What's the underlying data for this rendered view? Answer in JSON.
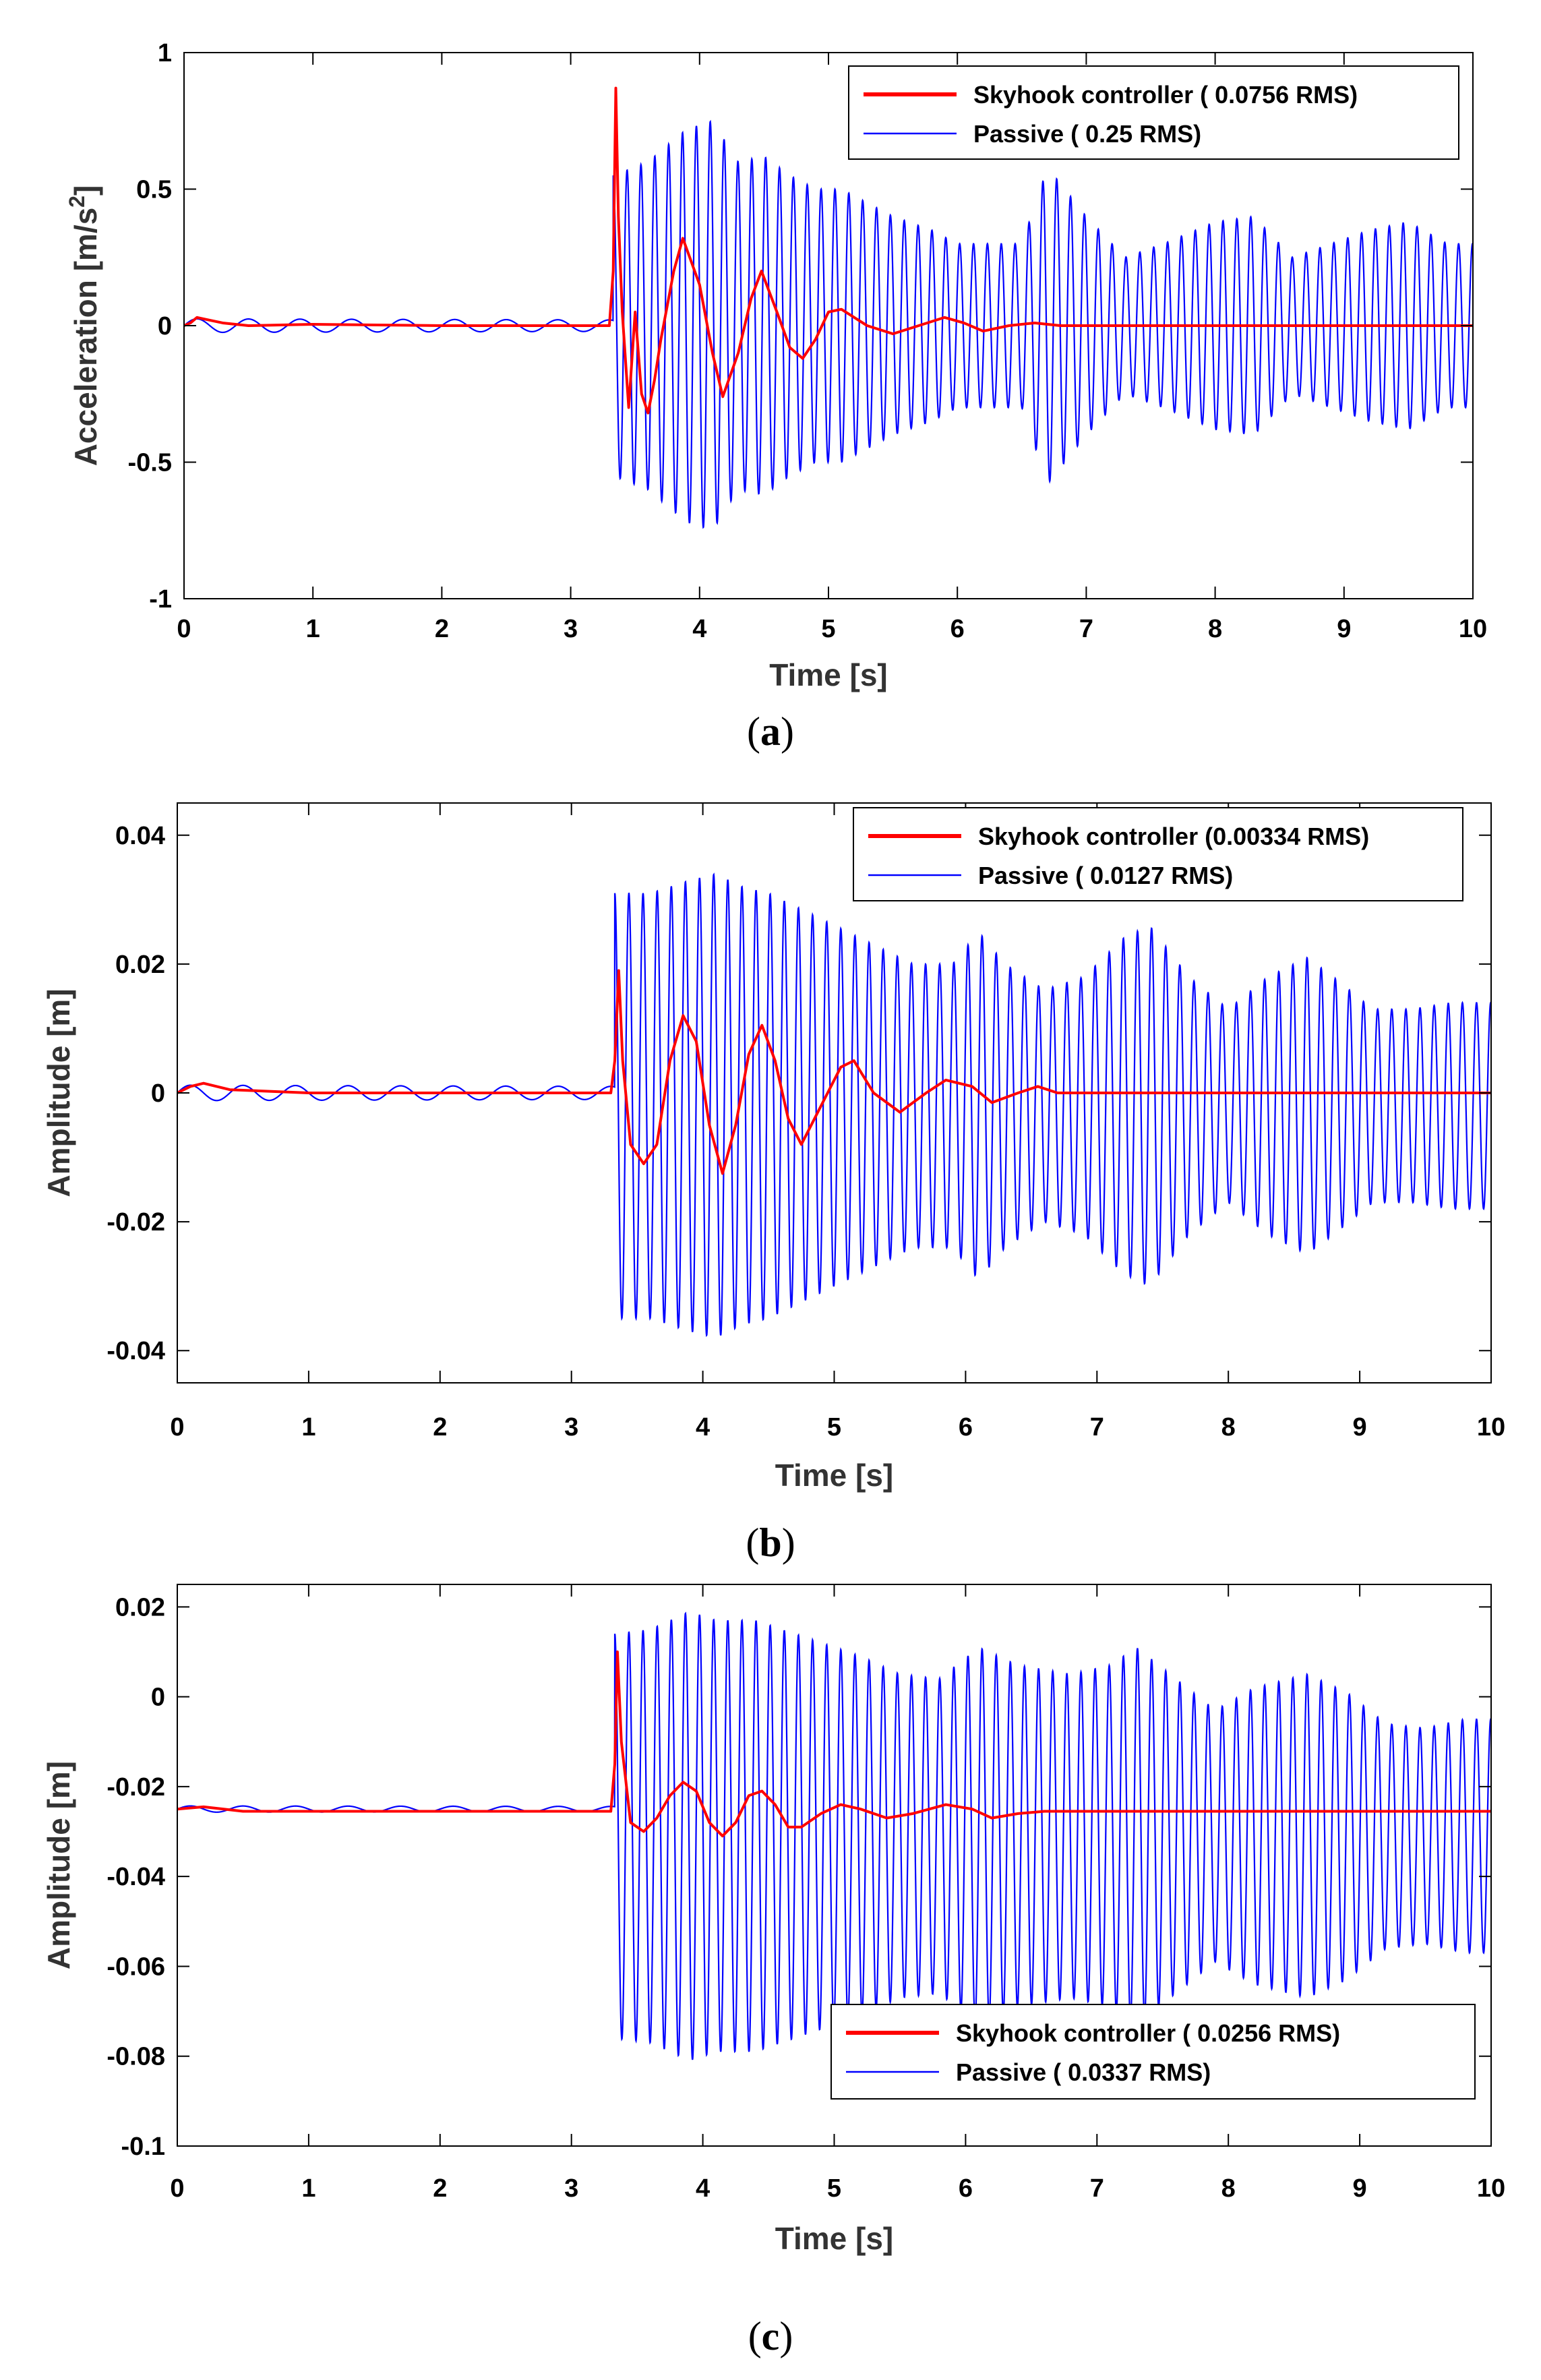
{
  "chart_data": [
    {
      "type": "line",
      "panel_caption": "(a)",
      "caption_letter": "a",
      "xlabel": "Time [s]",
      "ylabel": "Acceleration  [m/s",
      "ylabel_sup": "2",
      "ylabel_close": "]",
      "xlim": [
        0,
        10
      ],
      "ylim": [
        -1,
        1
      ],
      "xticks": [
        0,
        1,
        2,
        3,
        4,
        5,
        6,
        7,
        8,
        9,
        10
      ],
      "yticks": [
        -1,
        -0.5,
        0,
        0.5,
        1
      ],
      "ytick_labels": [
        "-1",
        "-0.5",
        "0",
        "0.5",
        "1"
      ],
      "legend_position": "top-right",
      "grid": false,
      "series": [
        {
          "name": "Skyhook controller ( 0.0756 RMS)",
          "color": "#ff0000",
          "points": [
            [
              0,
              0
            ],
            [
              0.05,
              0.01
            ],
            [
              0.1,
              0.03
            ],
            [
              0.2,
              0.02
            ],
            [
              0.3,
              0.01
            ],
            [
              0.5,
              0
            ],
            [
              1,
              0.005
            ],
            [
              2,
              0
            ],
            [
              3,
              0
            ],
            [
              3.3,
              0
            ],
            [
              3.33,
              0.2
            ],
            [
              3.35,
              0.87
            ],
            [
              3.37,
              0.4
            ],
            [
              3.4,
              0.05
            ],
            [
              3.45,
              -0.3
            ],
            [
              3.5,
              0.05
            ],
            [
              3.55,
              -0.25
            ],
            [
              3.6,
              -0.32
            ],
            [
              3.65,
              -0.2
            ],
            [
              3.7,
              -0.05
            ],
            [
              3.8,
              0.2
            ],
            [
              3.87,
              0.32
            ],
            [
              4.0,
              0.15
            ],
            [
              4.1,
              -0.1
            ],
            [
              4.18,
              -0.26
            ],
            [
              4.3,
              -0.1
            ],
            [
              4.4,
              0.1
            ],
            [
              4.48,
              0.2
            ],
            [
              4.6,
              0.05
            ],
            [
              4.7,
              -0.08
            ],
            [
              4.8,
              -0.12
            ],
            [
              4.9,
              -0.05
            ],
            [
              5.0,
              0.05
            ],
            [
              5.1,
              0.06
            ],
            [
              5.3,
              0
            ],
            [
              5.5,
              -0.03
            ],
            [
              5.7,
              0.0
            ],
            [
              5.9,
              0.03
            ],
            [
              6.05,
              0.01
            ],
            [
              6.2,
              -0.02
            ],
            [
              6.4,
              0
            ],
            [
              6.6,
              0.01
            ],
            [
              6.8,
              0
            ],
            [
              7,
              0
            ],
            [
              8,
              0
            ],
            [
              9,
              0
            ],
            [
              10,
              0
            ]
          ]
        },
        {
          "name": "Passive (   0.25 RMS)",
          "color": "#0000ff",
          "osc": {
            "f_pre": 2.5,
            "a_pre": 0.025,
            "offset_pre": 0.0,
            "t0": 3.33,
            "offset_post": 0.0,
            "f_post": 9.3,
            "envelope": [
              [
                3.33,
                0.55
              ],
              [
                3.6,
                0.6
              ],
              [
                3.9,
                0.72
              ],
              [
                4.1,
                0.75
              ],
              [
                4.3,
                0.6
              ],
              [
                4.5,
                0.62
              ],
              [
                4.7,
                0.55
              ],
              [
                4.9,
                0.5
              ],
              [
                5.1,
                0.5
              ],
              [
                5.3,
                0.45
              ],
              [
                5.5,
                0.4
              ],
              [
                5.8,
                0.35
              ],
              [
                6.0,
                0.3
              ],
              [
                6.2,
                0.3
              ],
              [
                6.5,
                0.3
              ],
              [
                6.7,
                0.58
              ],
              [
                7.0,
                0.4
              ],
              [
                7.3,
                0.25
              ],
              [
                7.6,
                0.3
              ],
              [
                8.0,
                0.38
              ],
              [
                8.3,
                0.4
              ],
              [
                8.6,
                0.25
              ],
              [
                8.9,
                0.3
              ],
              [
                9.2,
                0.35
              ],
              [
                9.5,
                0.38
              ],
              [
                9.8,
                0.3
              ],
              [
                10.0,
                0.3
              ]
            ]
          }
        }
      ]
    },
    {
      "type": "line",
      "panel_caption": "(b)",
      "caption_letter": "b",
      "xlabel": "Time [s]",
      "ylabel": "Amplitude [m]",
      "xlim": [
        0,
        10
      ],
      "ylim": [
        -0.045,
        0.045
      ],
      "xticks": [
        0,
        1,
        2,
        3,
        4,
        5,
        6,
        7,
        8,
        9,
        10
      ],
      "yticks": [
        -0.04,
        -0.02,
        0,
        0.02,
        0.04
      ],
      "ytick_labels": [
        "-0.04",
        "-0.02",
        "0",
        "0.02",
        "0.04"
      ],
      "legend_position": "top-right",
      "grid": false,
      "series": [
        {
          "name": "Skyhook controller (0.00334 RMS)",
          "color": "#ff0000",
          "points": [
            [
              0,
              0
            ],
            [
              0.1,
              0.001
            ],
            [
              0.2,
              0.0015
            ],
            [
              0.4,
              0.0005
            ],
            [
              1,
              0.0
            ],
            [
              2,
              0
            ],
            [
              3,
              0
            ],
            [
              3.3,
              0
            ],
            [
              3.33,
              0.005
            ],
            [
              3.36,
              0.019
            ],
            [
              3.39,
              0.005
            ],
            [
              3.45,
              -0.008
            ],
            [
              3.55,
              -0.011
            ],
            [
              3.65,
              -0.008
            ],
            [
              3.75,
              0.005
            ],
            [
              3.85,
              0.012
            ],
            [
              3.95,
              0.008
            ],
            [
              4.05,
              -0.005
            ],
            [
              4.15,
              -0.0125
            ],
            [
              4.25,
              -0.005
            ],
            [
              4.35,
              0.006
            ],
            [
              4.45,
              0.0105
            ],
            [
              4.55,
              0.005
            ],
            [
              4.65,
              -0.004
            ],
            [
              4.75,
              -0.008
            ],
            [
              4.9,
              -0.002
            ],
            [
              5.05,
              0.004
            ],
            [
              5.15,
              0.005
            ],
            [
              5.3,
              0
            ],
            [
              5.5,
              -0.003
            ],
            [
              5.7,
              0
            ],
            [
              5.85,
              0.002
            ],
            [
              6.05,
              0.001
            ],
            [
              6.2,
              -0.0015
            ],
            [
              6.4,
              0
            ],
            [
              6.55,
              0.001
            ],
            [
              6.7,
              0
            ],
            [
              7,
              0
            ],
            [
              8,
              0
            ],
            [
              9,
              0
            ],
            [
              10,
              0
            ]
          ]
        },
        {
          "name": "Passive  ( 0.0127 RMS)",
          "color": "#0000ff",
          "osc": {
            "f_pre": 2.5,
            "a_pre": 0.0012,
            "offset_pre": 0.0,
            "t0": 3.33,
            "offset_post": -0.002,
            "f_post": 9.3,
            "envelope": [
              [
                3.33,
                0.033
              ],
              [
                3.6,
                0.033
              ],
              [
                3.9,
                0.035
              ],
              [
                4.1,
                0.036
              ],
              [
                4.3,
                0.034
              ],
              [
                4.5,
                0.033
              ],
              [
                4.7,
                0.031
              ],
              [
                5.0,
                0.028
              ],
              [
                5.3,
                0.025
              ],
              [
                5.6,
                0.022
              ],
              [
                5.9,
                0.022
              ],
              [
                6.1,
                0.027
              ],
              [
                6.3,
                0.022
              ],
              [
                6.6,
                0.018
              ],
              [
                6.9,
                0.02
              ],
              [
                7.2,
                0.026
              ],
              [
                7.4,
                0.028
              ],
              [
                7.7,
                0.02
              ],
              [
                8.0,
                0.015
              ],
              [
                8.3,
                0.02
              ],
              [
                8.6,
                0.023
              ],
              [
                8.8,
                0.02
              ],
              [
                9.1,
                0.015
              ],
              [
                9.4,
                0.015
              ],
              [
                9.7,
                0.016
              ],
              [
                10.0,
                0.016
              ]
            ]
          }
        }
      ]
    },
    {
      "type": "line",
      "panel_caption": "(c)",
      "caption_letter": "c",
      "xlabel": "Time [s]",
      "ylabel": "Amplitude [m]",
      "xlim": [
        0,
        10
      ],
      "ylim": [
        -0.1,
        0.025
      ],
      "xticks": [
        0,
        1,
        2,
        3,
        4,
        5,
        6,
        7,
        8,
        9,
        10
      ],
      "yticks": [
        -0.1,
        -0.08,
        -0.06,
        -0.04,
        -0.02,
        0,
        0.02
      ],
      "ytick_labels": [
        "-0.1",
        "-0.08",
        "-0.06",
        "-0.04",
        "-0.02",
        "0",
        "0.02"
      ],
      "legend_position": "bottom-right",
      "grid": false,
      "series": [
        {
          "name": "Skyhook controller ( 0.0256 RMS)",
          "color": "#ff0000",
          "points": [
            [
              0,
              -0.025
            ],
            [
              0.2,
              -0.0245
            ],
            [
              0.5,
              -0.0255
            ],
            [
              1,
              -0.0255
            ],
            [
              2,
              -0.0255
            ],
            [
              3,
              -0.0255
            ],
            [
              3.3,
              -0.0255
            ],
            [
              3.33,
              -0.015
            ],
            [
              3.35,
              0.01
            ],
            [
              3.38,
              -0.01
            ],
            [
              3.45,
              -0.028
            ],
            [
              3.55,
              -0.03
            ],
            [
              3.65,
              -0.027
            ],
            [
              3.75,
              -0.022
            ],
            [
              3.85,
              -0.019
            ],
            [
              3.95,
              -0.021
            ],
            [
              4.05,
              -0.028
            ],
            [
              4.15,
              -0.031
            ],
            [
              4.25,
              -0.028
            ],
            [
              4.35,
              -0.022
            ],
            [
              4.45,
              -0.021
            ],
            [
              4.55,
              -0.024
            ],
            [
              4.65,
              -0.029
            ],
            [
              4.75,
              -0.029
            ],
            [
              4.9,
              -0.026
            ],
            [
              5.05,
              -0.024
            ],
            [
              5.2,
              -0.025
            ],
            [
              5.4,
              -0.027
            ],
            [
              5.6,
              -0.026
            ],
            [
              5.85,
              -0.024
            ],
            [
              6.05,
              -0.025
            ],
            [
              6.2,
              -0.027
            ],
            [
              6.4,
              -0.026
            ],
            [
              6.6,
              -0.0255
            ],
            [
              7,
              -0.0255
            ],
            [
              8,
              -0.0255
            ],
            [
              9,
              -0.0255
            ],
            [
              10,
              -0.0255
            ]
          ]
        },
        {
          "name": "Passive  ( 0.0337 RMS)",
          "color": "#0000ff",
          "osc": {
            "f_pre": 2.5,
            "a_pre": 0.0007,
            "offset_pre": -0.025,
            "t0": 3.33,
            "offset_post": -0.031,
            "f_post": 9.3,
            "envelope": [
              [
                3.33,
                0.045
              ],
              [
                3.6,
                0.046
              ],
              [
                3.9,
                0.05
              ],
              [
                4.1,
                0.048
              ],
              [
                4.4,
                0.048
              ],
              [
                4.6,
                0.046
              ],
              [
                4.9,
                0.043
              ],
              [
                5.2,
                0.04
              ],
              [
                5.5,
                0.036
              ],
              [
                5.8,
                0.035
              ],
              [
                6.1,
                0.042
              ],
              [
                6.4,
                0.038
              ],
              [
                6.8,
                0.036
              ],
              [
                7.1,
                0.038
              ],
              [
                7.3,
                0.042
              ],
              [
                7.6,
                0.035
              ],
              [
                7.9,
                0.028
              ],
              [
                8.2,
                0.033
              ],
              [
                8.6,
                0.036
              ],
              [
                8.9,
                0.032
              ],
              [
                9.2,
                0.025
              ],
              [
                9.5,
                0.024
              ],
              [
                9.8,
                0.026
              ],
              [
                10.0,
                0.026
              ]
            ]
          }
        }
      ]
    }
  ]
}
